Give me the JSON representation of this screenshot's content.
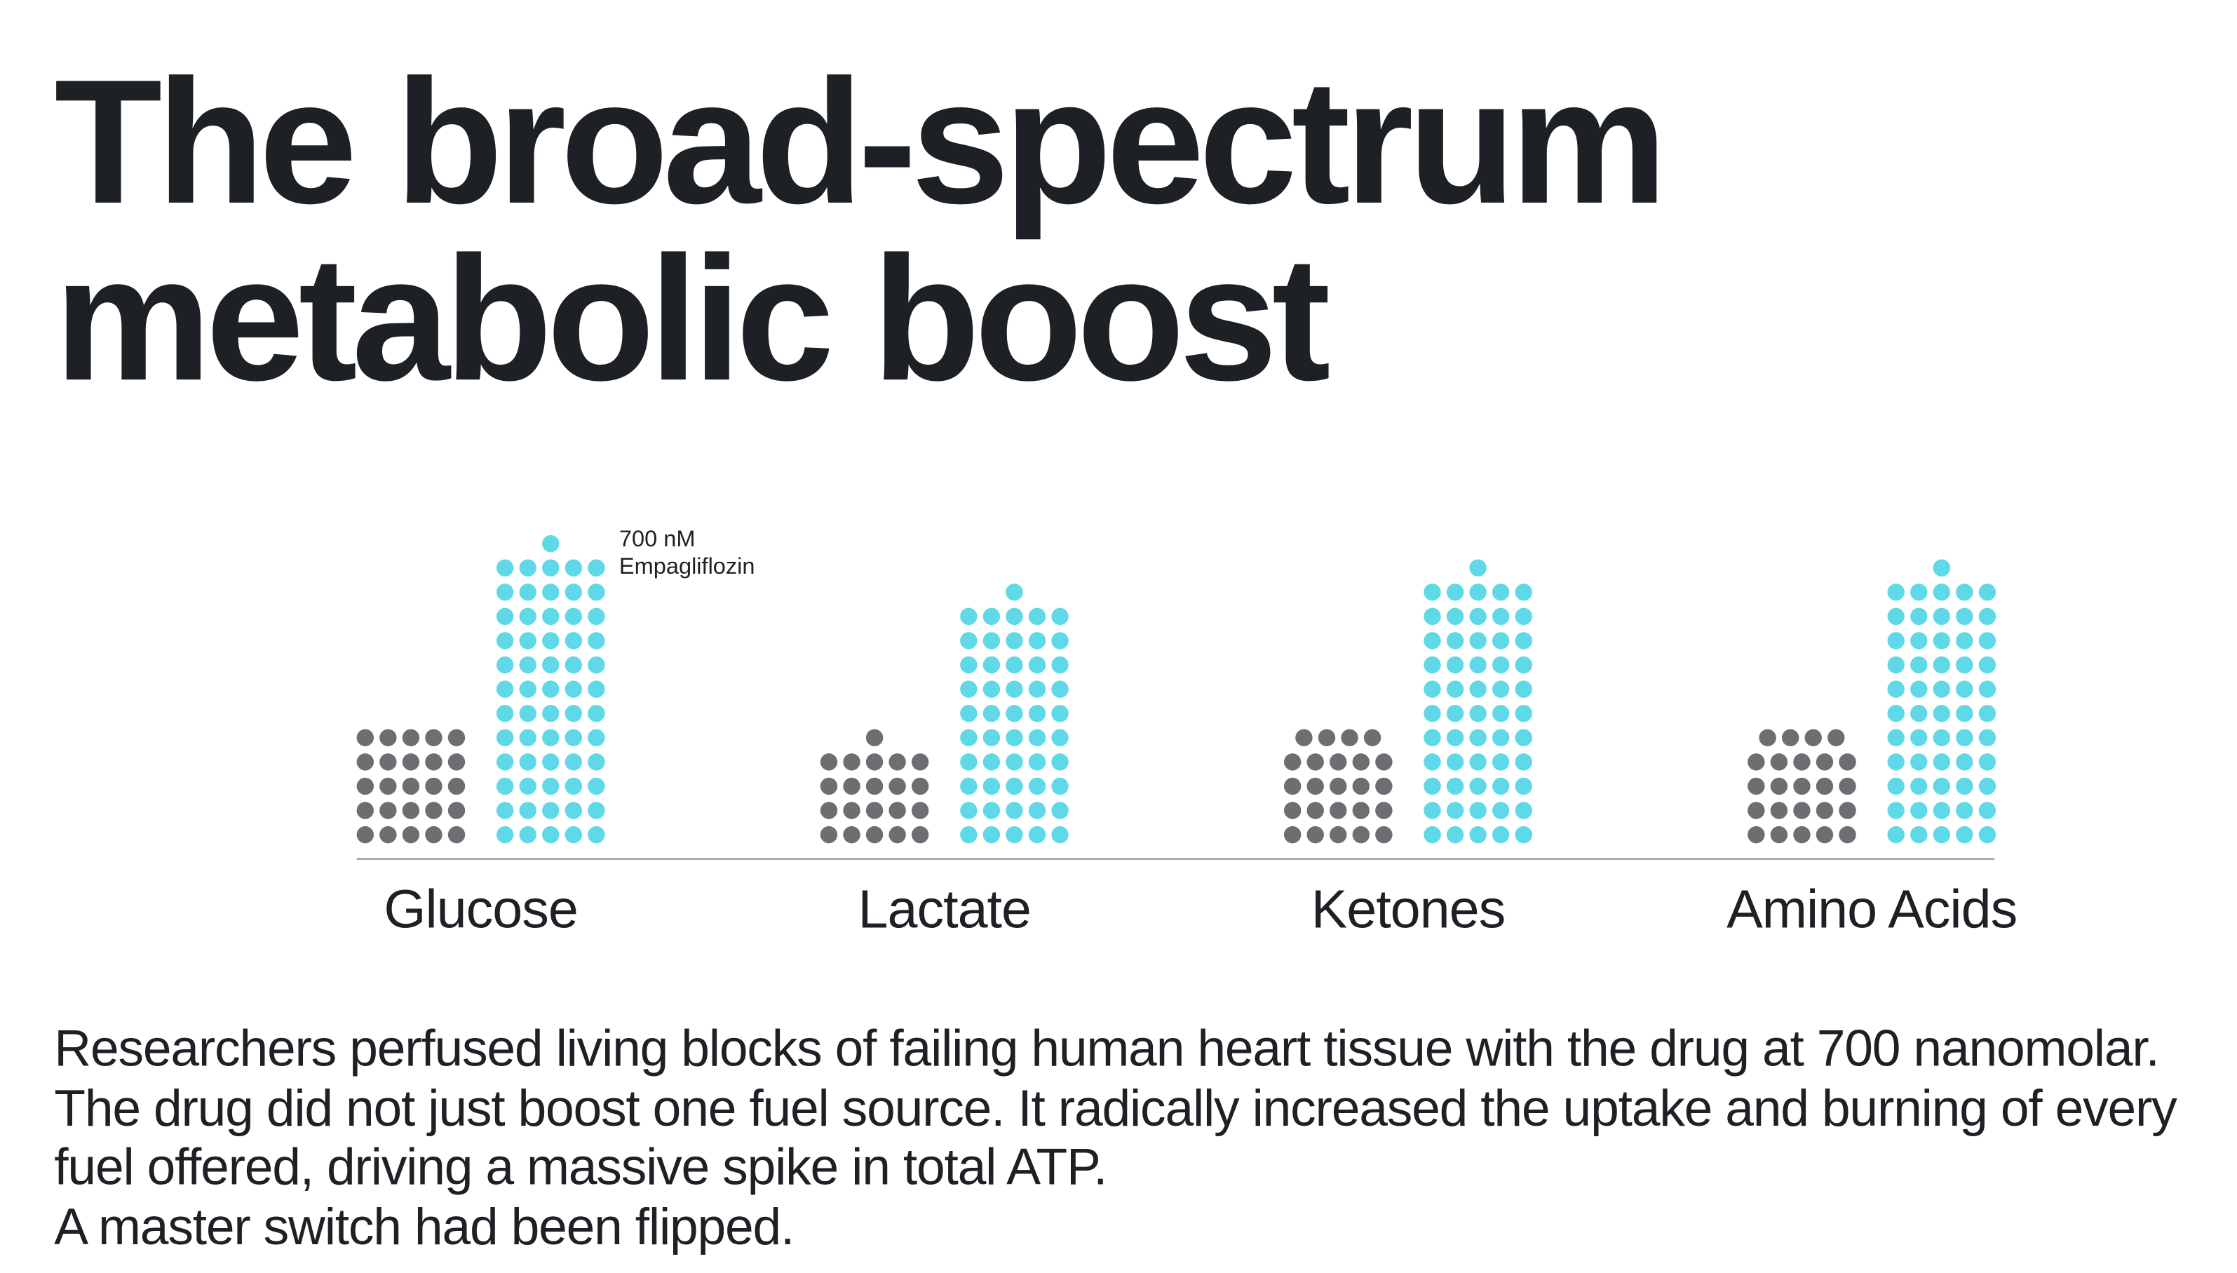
{
  "chart_data": {
    "type": "dot",
    "title": "The broad-spectrum metabolic boost",
    "categories": [
      "Glucose",
      "Lactate",
      "Ketones",
      "Amino Acids"
    ],
    "series": [
      {
        "color": "#6d6e72",
        "values": [
          25,
          21,
          24,
          24
        ]
      },
      {
        "name": "700 nM Empagliflozin",
        "color": "#5fd9e7",
        "values": [
          61,
          51,
          56,
          56
        ]
      }
    ],
    "paragraphs": [
      "Researchers perfused living blocks of failing human heart tissue with the drug at 700 nanomolar. The drug did not just boost one fuel source. It radically increased the uptake and burning of every fuel offered, driving a massive spike in total ATP.",
      "A master switch had been flipped."
    ]
  }
}
